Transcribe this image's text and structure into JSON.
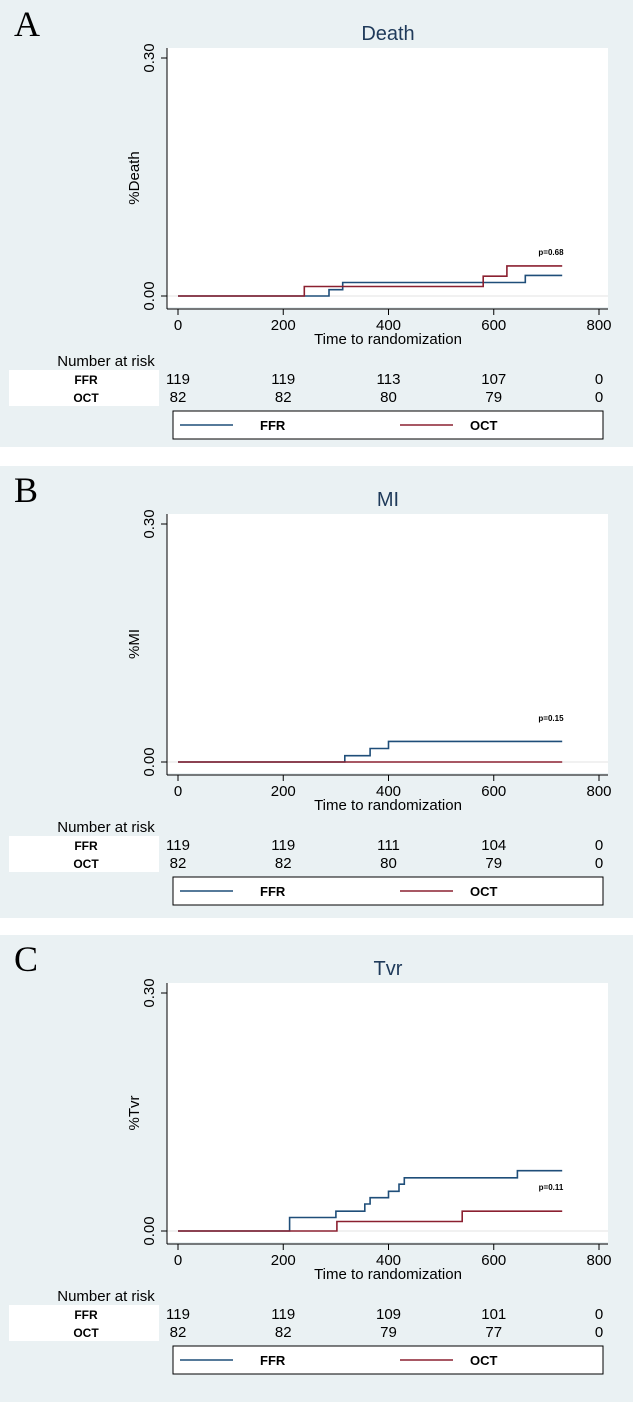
{
  "chart_data": [
    {
      "type": "line",
      "panel_label": "A",
      "title": "Death",
      "xlabel": "Time to randomization",
      "ylabel": "%Death",
      "xlim": [
        0,
        800
      ],
      "ylim": [
        0,
        0.3
      ],
      "x_ticks": [
        "0",
        "200",
        "400",
        "600",
        "800"
      ],
      "y_ticks": [
        "0.00",
        "0.30"
      ],
      "annotation": "p=0.68",
      "risk_title": "Number at risk",
      "series": [
        {
          "name": "FFR",
          "color": "#1f4e79",
          "x": [
            0,
            287,
            287,
            313,
            313,
            660,
            660,
            730
          ],
          "y": [
            0,
            0,
            0.008,
            0.008,
            0.017,
            0.017,
            0.026,
            0.026
          ]
        },
        {
          "name": "OCT",
          "color": "#8b2030",
          "x": [
            0,
            240,
            240,
            580,
            580,
            625,
            625,
            730
          ],
          "y": [
            0,
            0,
            0.012,
            0.012,
            0.025,
            0.025,
            0.038,
            0.038
          ]
        }
      ],
      "risk_table": [
        {
          "group": "FFR",
          "values": [
            "119",
            "119",
            "113",
            "107",
            "0"
          ]
        },
        {
          "group": "OCT",
          "values": [
            "82",
            "82",
            "80",
            "79",
            "0"
          ]
        }
      ]
    },
    {
      "type": "line",
      "panel_label": "B",
      "title": "MI",
      "xlabel": "Time to randomization",
      "ylabel": "%MI",
      "xlim": [
        0,
        800
      ],
      "ylim": [
        0,
        0.3
      ],
      "x_ticks": [
        "0",
        "200",
        "400",
        "600",
        "800"
      ],
      "y_ticks": [
        "0.00",
        "0.30"
      ],
      "annotation": "p=0.15",
      "risk_title": "Number at risk",
      "series": [
        {
          "name": "FFR",
          "color": "#1f4e79",
          "x": [
            0,
            317,
            317,
            365,
            365,
            400,
            400,
            730
          ],
          "y": [
            0,
            0,
            0.008,
            0.008,
            0.017,
            0.017,
            0.026,
            0.026
          ]
        },
        {
          "name": "OCT",
          "color": "#8b2030",
          "x": [
            0,
            730
          ],
          "y": [
            0,
            0
          ]
        }
      ],
      "risk_table": [
        {
          "group": "FFR",
          "values": [
            "119",
            "119",
            "111",
            "104",
            "0"
          ]
        },
        {
          "group": "OCT",
          "values": [
            "82",
            "82",
            "80",
            "79",
            "0"
          ]
        }
      ]
    },
    {
      "type": "line",
      "panel_label": "C",
      "title": "Tvr",
      "xlabel": "Time to randomization",
      "ylabel": "%Tvr",
      "xlim": [
        0,
        800
      ],
      "ylim": [
        0,
        0.3
      ],
      "x_ticks": [
        "0",
        "200",
        "400",
        "600",
        "800"
      ],
      "y_ticks": [
        "0.00",
        "0.30"
      ],
      "annotation": "p=0.11",
      "risk_title": "Number at risk",
      "series": [
        {
          "name": "FFR",
          "color": "#1f4e79",
          "x": [
            0,
            212,
            212,
            300,
            300,
            355,
            355,
            365,
            365,
            400,
            400,
            420,
            420,
            430,
            430,
            645,
            645,
            730
          ],
          "y": [
            0,
            0,
            0.017,
            0.017,
            0.025,
            0.025,
            0.034,
            0.034,
            0.042,
            0.042,
            0.05,
            0.05,
            0.059,
            0.059,
            0.067,
            0.067,
            0.076,
            0.076
          ]
        },
        {
          "name": "OCT",
          "color": "#8b2030",
          "x": [
            0,
            302,
            302,
            540,
            540,
            730
          ],
          "y": [
            0,
            0,
            0.012,
            0.012,
            0.025,
            0.025
          ]
        }
      ],
      "risk_table": [
        {
          "group": "FFR",
          "values": [
            "119",
            "119",
            "109",
            "101",
            "0"
          ]
        },
        {
          "group": "OCT",
          "values": [
            "82",
            "82",
            "79",
            "77",
            "0"
          ]
        }
      ]
    }
  ]
}
